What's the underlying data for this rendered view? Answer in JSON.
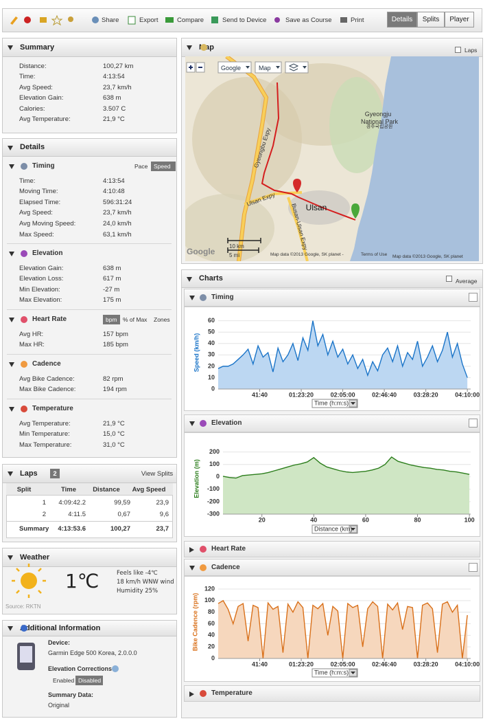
{
  "toolbar": {
    "actions": [
      "Share",
      "Export",
      "Compare",
      "Send to Device",
      "Save as Course",
      "Print"
    ],
    "tabs": [
      "Details",
      "Splits",
      "Player"
    ]
  },
  "summary": {
    "title": "Summary",
    "rows": [
      [
        "Distance:",
        "100,27 km"
      ],
      [
        "Time:",
        "4:13:54"
      ],
      [
        "Avg Speed:",
        "23,7 km/h"
      ],
      [
        "Elevation Gain:",
        "638 m"
      ],
      [
        "Calories:",
        "3.507 C"
      ],
      [
        "Avg Temperature:",
        "21,9 °C"
      ]
    ]
  },
  "details": {
    "title": "Details",
    "sections": [
      {
        "title": "Timing",
        "options": [
          "Pace",
          "Speed"
        ],
        "rows": [
          [
            "Time:",
            "4:13:54"
          ],
          [
            "Moving Time:",
            "4:10:48"
          ],
          [
            "Elapsed Time:",
            "596:31:24"
          ],
          [
            "Avg Speed:",
            "23,7 km/h"
          ],
          [
            "Avg Moving Speed:",
            "24,0 km/h"
          ],
          [
            "Max Speed:",
            "63,1 km/h"
          ]
        ]
      },
      {
        "title": "Elevation",
        "rows": [
          [
            "Elevation Gain:",
            "638 m"
          ],
          [
            "Elevation Loss:",
            "617 m"
          ],
          [
            "Min Elevation:",
            "-27 m"
          ],
          [
            "Max Elevation:",
            "175 m"
          ]
        ]
      },
      {
        "title": "Heart Rate",
        "options": [
          "bpm",
          "% of Max",
          "Zones"
        ],
        "rows": [
          [
            "Avg HR:",
            "157 bpm"
          ],
          [
            "Max HR:",
            "185 bpm"
          ]
        ]
      },
      {
        "title": "Cadence",
        "rows": [
          [
            "Avg Bike Cadence:",
            "82 rpm"
          ],
          [
            "Max Bike Cadence:",
            "194 rpm"
          ]
        ]
      },
      {
        "title": "Temperature",
        "rows": [
          [
            "Avg Temperature:",
            "21,9 °C"
          ],
          [
            "Min Temperature:",
            "15,0 °C"
          ],
          [
            "Max Temperature:",
            "31,0 °C"
          ]
        ]
      }
    ]
  },
  "laps": {
    "title": "Laps",
    "count": "2",
    "link": "View Splits",
    "columns": [
      "Split",
      "Time",
      "Distance",
      "Avg Speed"
    ],
    "rows": [
      [
        "1",
        "4:09:42.2",
        "99,59",
        "23,9"
      ],
      [
        "2",
        "4:11.5",
        "0,67",
        "9,6"
      ],
      [
        "Summary",
        "4:13:53.6",
        "100,27",
        "23,7"
      ]
    ]
  },
  "weather": {
    "title": "Weather",
    "temperature": "1℃",
    "lines": [
      "Feels like -4℃",
      "18 km/h WNW wind",
      "Humidity 25%"
    ],
    "source": "Source: RKTN"
  },
  "additional": {
    "title": "Additional Information",
    "device_label": "Device:",
    "device": "Garmin Edge 500 Korea, 2.0.0.0",
    "corrections_label": "Elevation Corrections",
    "corrections_options": [
      "Enabled",
      "Disabled"
    ],
    "summary_label": "Summary Data:",
    "summary_value": "Original"
  },
  "map": {
    "title": "Map",
    "laps": "Laps",
    "controls": [
      "Google",
      "Map"
    ],
    "places": [
      "Gyeongju",
      "National Park",
      "경주국립공원",
      "Ulsan",
      "Gyeongbu Expy",
      "Ulsan Expy",
      "Busan-Ulsan Expy"
    ],
    "scale": [
      "10 km",
      "5 mi"
    ],
    "logo": "Google",
    "attribution": [
      "Map data ©2013 Google, SK planet -",
      "Terms of Use",
      "Map data ©2013 Google, SK planet"
    ]
  },
  "charts": {
    "title": "Charts",
    "average": "Average",
    "panels": [
      "Timing",
      "Elevation",
      "Heart Rate",
      "Cadence",
      "Temperature"
    ]
  },
  "chart_data": [
    {
      "type": "area",
      "ylabel": "Speed (km/h)",
      "xlabel": "Time (h:m:s)",
      "color": "#1a74c8",
      "fill_color": "#bcd7f2",
      "grid": true,
      "x": [
        0,
        300,
        600,
        900,
        1200,
        1500,
        1800,
        2100,
        2400,
        2700,
        3000,
        3300,
        3600,
        3900,
        4200,
        4500,
        4800,
        5100,
        5400,
        5700,
        6000,
        6300,
        6600,
        6900,
        7200,
        7500,
        7800,
        8100,
        8400,
        8700,
        9000,
        9300,
        9600,
        9900,
        10200,
        10500,
        10800,
        11100,
        11400,
        11700,
        12000,
        12300,
        12600,
        12900,
        13200,
        13500,
        13800,
        14100,
        14400,
        14700,
        15000
      ],
      "values": [
        18,
        20,
        20,
        22,
        26,
        30,
        35,
        22,
        38,
        28,
        32,
        15,
        36,
        24,
        30,
        40,
        25,
        45,
        34,
        60,
        38,
        48,
        30,
        42,
        28,
        35,
        22,
        30,
        18,
        26,
        12,
        24,
        16,
        30,
        36,
        24,
        38,
        20,
        32,
        26,
        42,
        20,
        28,
        38,
        24,
        34,
        50,
        28,
        40,
        22,
        10
      ],
      "xlim": [
        0,
        15200
      ],
      "ylim": [
        0,
        64
      ],
      "yticks": [
        0,
        10,
        20,
        30,
        40,
        50,
        60
      ],
      "xticks": [
        {
          "value": 2500,
          "label": "41:40"
        },
        {
          "value": 5000,
          "label": "01:23:20"
        },
        {
          "value": 7500,
          "label": "02:05:00"
        },
        {
          "value": 10000,
          "label": "02:46:40"
        },
        {
          "value": 12500,
          "label": "03:28:20"
        },
        {
          "value": 15000,
          "label": "04:10:00"
        }
      ]
    },
    {
      "type": "area",
      "ylabel": "Elevation (m)",
      "xlabel": "Distance (km)",
      "color": "#2b7d1b",
      "fill_color": "#cfe6c4",
      "grid": true,
      "x": [
        5,
        7.5,
        10,
        12.5,
        15,
        17.5,
        20,
        22.5,
        25,
        27.5,
        30,
        32.5,
        35,
        37.5,
        40,
        42.5,
        45,
        47.5,
        50,
        52.5,
        55,
        57.5,
        60,
        62.5,
        65,
        67.5,
        70,
        72.5,
        75,
        77.5,
        80,
        82.5,
        85,
        87.5,
        90,
        92.5,
        95,
        97.5,
        100
      ],
      "values": [
        5,
        -5,
        -10,
        10,
        15,
        20,
        25,
        35,
        50,
        65,
        80,
        95,
        105,
        120,
        155,
        110,
        80,
        65,
        50,
        40,
        35,
        40,
        45,
        55,
        70,
        100,
        160,
        125,
        110,
        95,
        85,
        75,
        70,
        60,
        55,
        45,
        40,
        30,
        20
      ],
      "xlim": [
        5,
        100.5
      ],
      "ylim": [
        -300,
        270
      ],
      "yticks": [
        -300,
        -200,
        -100,
        0,
        100,
        200
      ],
      "xticks": [
        20,
        40,
        60,
        80,
        100
      ]
    },
    {
      "type": "area",
      "ylabel": "Bike Cadence (rpm)",
      "xlabel": "Time (h:m:s)",
      "color": "#d9701a",
      "fill_color": "#f6d7bd",
      "grid": true,
      "x": [
        0,
        300,
        600,
        900,
        1200,
        1500,
        1800,
        2100,
        2400,
        2700,
        3000,
        3300,
        3600,
        3900,
        4200,
        4500,
        4800,
        5100,
        5400,
        5700,
        6000,
        6300,
        6600,
        6900,
        7200,
        7500,
        7800,
        8100,
        8400,
        8700,
        9000,
        9300,
        9600,
        9900,
        10200,
        10500,
        10800,
        11100,
        11400,
        11700,
        12000,
        12300,
        12600,
        12900,
        13200,
        13500,
        13800,
        14100,
        14400,
        14700,
        15000
      ],
      "values": [
        95,
        100,
        85,
        60,
        90,
        95,
        30,
        92,
        88,
        0,
        96,
        85,
        90,
        10,
        94,
        80,
        98,
        88,
        0,
        92,
        86,
        95,
        40,
        90,
        82,
        0,
        95,
        88,
        92,
        20,
        86,
        98,
        90,
        0,
        94,
        84,
        96,
        50,
        90,
        88,
        0,
        92,
        96,
        86,
        10,
        94,
        98,
        80,
        92,
        0,
        75
      ],
      "xlim": [
        0,
        15200
      ],
      "ylim": [
        0,
        126
      ],
      "yticks": [
        0,
        20,
        40,
        60,
        80,
        100,
        120
      ],
      "xticks": [
        {
          "value": 2500,
          "label": "41:40"
        },
        {
          "value": 5000,
          "label": "01:23:20"
        },
        {
          "value": 7500,
          "label": "02:05:00"
        },
        {
          "value": 10000,
          "label": "02:46:40"
        },
        {
          "value": 12500,
          "label": "03:28:20"
        },
        {
          "value": 15000,
          "label": "04:10:00"
        }
      ]
    }
  ]
}
